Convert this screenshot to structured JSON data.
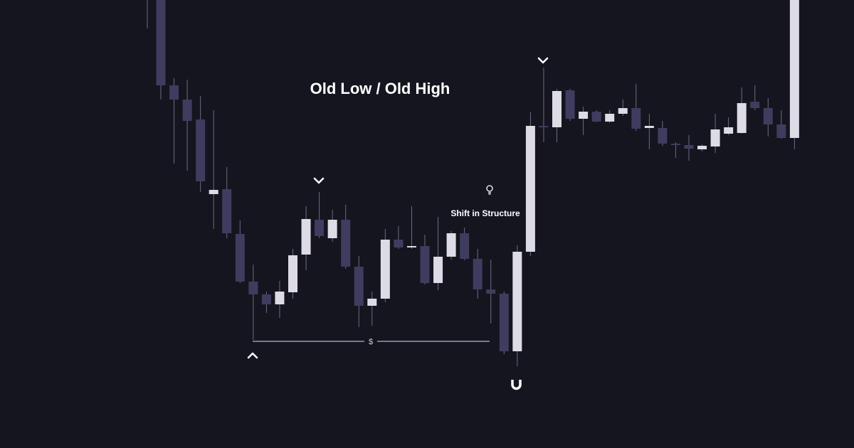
{
  "chart_data": {
    "type": "candlestick",
    "title": "Old Low / Old High",
    "ylim": [
      0,
      630
    ],
    "up_color": "#dddce6",
    "down_color": "#3f3c5f",
    "wick_color": "#6c6b82",
    "open": [
      630,
      510,
      490,
      462,
      357,
      364,
      301,
      234,
      216,
      202,
      219,
      272,
      321,
      295,
      321,
      255,
      200,
      210,
      293,
      282,
      284,
      232,
      269,
      302,
      266,
      223,
      217,
      136,
      276,
      453,
      451,
      503,
      463,
      473,
      459,
      470,
      478,
      450,
      450,
      428,
      426,
      420,
      424,
      442,
      443,
      487,
      478,
      455,
      436
    ],
    "close": [
      510,
      490,
      460,
      375,
      363,
      302,
      234,
      216,
      202,
      220,
      271,
      322,
      298,
      321,
      255,
      200,
      210,
      293,
      282,
      284,
      232,
      269,
      302,
      266,
      223,
      217,
      136,
      276,
      453,
      451,
      502,
      463,
      473,
      459,
      470,
      478,
      449,
      453,
      428,
      426,
      421,
      425,
      448,
      451,
      485,
      478,
      455,
      436,
      630
    ],
    "high": [
      630,
      520,
      518,
      495,
      475,
      395,
      320,
      258,
      220,
      235,
      280,
      340,
      360,
      335,
      342,
      270,
      220,
      308,
      312,
      340,
      300,
      325,
      305,
      310,
      280,
      265,
      220,
      285,
      472,
      535,
      505,
      505,
      480,
      475,
      475,
      490,
      512,
      470,
      460,
      430,
      440,
      427,
      470,
      465,
      507,
      510,
      492,
      475,
      630
    ],
    "low": [
      490,
      400,
      390,
      360,
      308,
      295,
      232,
      152,
      190,
      183,
      210,
      250,
      295,
      290,
      252,
      170,
      172,
      205,
      280,
      280,
      230,
      222,
      265,
      264,
      210,
      175,
      132,
      115,
      270,
      430,
      430,
      460,
      440,
      458,
      457,
      467,
      446,
      420,
      425,
      408,
      404,
      417,
      415,
      440,
      442,
      475,
      438,
      435,
      420
    ],
    "annotations": [
      "Shift in Structure",
      "$"
    ]
  }
}
